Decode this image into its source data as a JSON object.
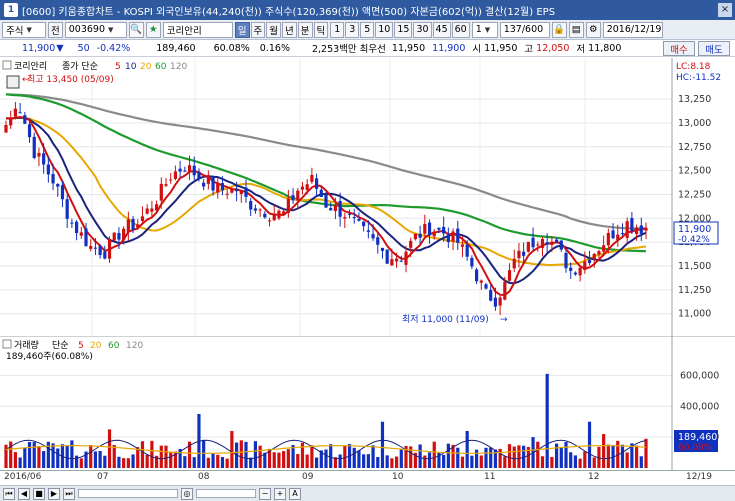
{
  "window": {
    "title": "[0600] 키움종합차트 - KOSPI 외국인보유(44,240(천)) 주식수(120,369(천)) 액면(500) 자본금(602(억)) 결산(12월) EPS"
  },
  "toolbar": {
    "market": "주식",
    "prev_label": "전",
    "code": "003690",
    "stock_name": "코리안리",
    "periods": [
      "일",
      "주",
      "월",
      "년",
      "분",
      "틱"
    ],
    "intervals": [
      "1",
      "3",
      "5",
      "10",
      "15",
      "30",
      "45",
      "60"
    ],
    "count_value": "1",
    "page_pos": "137",
    "page_total": "/600",
    "date": "2016/12/19"
  },
  "info": {
    "price": "11,900",
    "change": "50",
    "change_pct": "-0.42%",
    "volume": "189,460",
    "vol_ratio": "60.08%",
    "turnover": "0.16%",
    "amount": "2,253백만",
    "pref_label": "최우선",
    "pref_value": "11,950",
    "base_value": "11,900",
    "open_label": "시",
    "open_value": "11,950",
    "high_label": "고",
    "high_value": "12,050",
    "low_label": "저",
    "low_value": "11,800",
    "buy_label": "매수",
    "sell_label": "매도"
  },
  "main_legend": {
    "name": "코리안리",
    "ma_label": "종가 단순",
    "ma_periods": [
      "5",
      "10",
      "20",
      "60",
      "120"
    ]
  },
  "annotations": {
    "high": "최고 13,450 (05/09)",
    "low": "최저 11,000 (11/09)"
  },
  "right_axis": {
    "lc": "LC:8.18",
    "hc": "HC:-11.52",
    "price_ticks": [
      "13,250",
      "13,000",
      "12,750",
      "12,500",
      "12,250",
      "12,000",
      "11,750",
      "11,500",
      "11,250",
      "11,000"
    ],
    "current_price": "11,900",
    "current_pct": "-0.42%",
    "vol_ticks": [
      "600,000",
      "400,000",
      "200,000"
    ],
    "current_vol": "189,460",
    "current_vol_pct": "60.08%"
  },
  "vol_legend": {
    "name": "거래량",
    "ma_label": "단순",
    "ma_periods": [
      "5",
      "20",
      "60",
      "120"
    ],
    "value": "189,460주(60.08%)"
  },
  "x_labels": [
    "2016/06",
    "07",
    "08",
    "09",
    "10",
    "11",
    "12",
    "12/19"
  ],
  "colors": {
    "up": "#d01010",
    "down": "#1030c0",
    "ma5": "#d01010",
    "ma10": "#1a237e",
    "ma20": "#e6a800",
    "ma60": "#1e9a2e",
    "ma120": "#8a8a8a"
  },
  "chart_data": {
    "type": "candlestick",
    "price_range": [
      10850,
      13450
    ],
    "highest": {
      "value": 13450,
      "date": "05/09"
    },
    "lowest": {
      "value": 11000,
      "date": "11/09"
    },
    "last_close": 11900,
    "anchors": [
      [
        0,
        12980
      ],
      [
        3,
        13150
      ],
      [
        6,
        12700
      ],
      [
        10,
        12400
      ],
      [
        14,
        11950
      ],
      [
        18,
        11700
      ],
      [
        21,
        11650
      ],
      [
        25,
        11900
      ],
      [
        28,
        11950
      ],
      [
        32,
        12200
      ],
      [
        35,
        12450
      ],
      [
        38,
        12550
      ],
      [
        42,
        12400
      ],
      [
        45,
        12300
      ],
      [
        49,
        12300
      ],
      [
        52,
        12150
      ],
      [
        56,
        12050
      ],
      [
        59,
        12050
      ],
      [
        62,
        12300
      ],
      [
        65,
        12400
      ],
      [
        68,
        12150
      ],
      [
        72,
        12050
      ],
      [
        75,
        11900
      ],
      [
        78,
        11750
      ],
      [
        81,
        11600
      ],
      [
        84,
        11600
      ],
      [
        87,
        11800
      ],
      [
        90,
        11900
      ],
      [
        93,
        11850
      ],
      [
        96,
        11750
      ],
      [
        99,
        11500
      ],
      [
        102,
        11200
      ],
      [
        104,
        11150
      ],
      [
        106,
        11300
      ],
      [
        108,
        11550
      ],
      [
        111,
        11700
      ],
      [
        114,
        11850
      ],
      [
        117,
        11700
      ],
      [
        120,
        11450
      ],
      [
        123,
        11550
      ],
      [
        126,
        11700
      ],
      [
        129,
        11850
      ],
      [
        132,
        11950
      ],
      [
        135,
        11900
      ],
      [
        136,
        11900
      ]
    ],
    "volume_range": [
      0,
      700000
    ],
    "vol_events": [
      [
        115,
        610000
      ],
      [
        22,
        250000
      ],
      [
        41,
        350000
      ],
      [
        48,
        240000
      ],
      [
        80,
        300000
      ],
      [
        98,
        240000
      ],
      [
        112,
        200000
      ],
      [
        124,
        300000
      ],
      [
        127,
        220000
      ],
      [
        133,
        160000
      ]
    ],
    "last_volume": 189460
  }
}
